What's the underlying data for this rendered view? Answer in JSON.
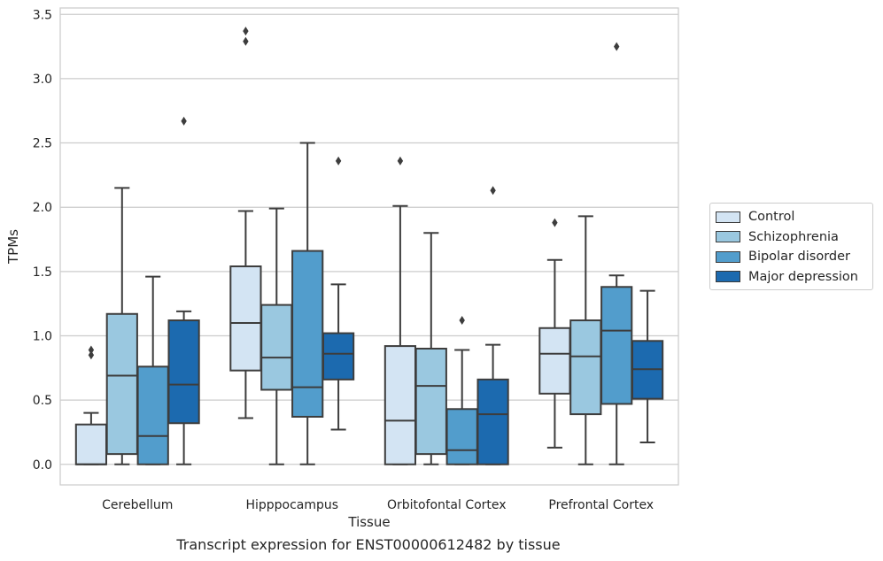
{
  "chart_data": {
    "type": "box",
    "title": "Transcript expression for ENST00000612482 by tissue",
    "xlabel": "Tissue",
    "ylabel": "TPMs",
    "ylim": [
      -0.16,
      3.55
    ],
    "yticks": [
      "0.0",
      "0.5",
      "1.0",
      "1.5",
      "2.0",
      "2.5",
      "3.0",
      "3.5"
    ],
    "grid": "horizontal",
    "legend_position": "right",
    "categories": [
      "Cerebellum",
      "Hipppocampus",
      "Orbitofontal Cortex",
      "Prefrontal Cortex"
    ],
    "series": [
      {
        "name": "Control",
        "color": "#d3e4f3",
        "boxes": [
          {
            "whisker_low": 0.0,
            "q1": 0.0,
            "median": 0.0,
            "q3": 0.31,
            "whisker_high": 0.4,
            "outliers": [
              0.85,
              0.89
            ]
          },
          {
            "whisker_low": 0.36,
            "q1": 0.73,
            "median": 1.1,
            "q3": 1.54,
            "whisker_high": 1.97,
            "outliers": [
              3.29,
              3.37
            ]
          },
          {
            "whisker_low": 0.0,
            "q1": 0.0,
            "median": 0.34,
            "q3": 0.92,
            "whisker_high": 2.01,
            "outliers": [
              2.36
            ]
          },
          {
            "whisker_low": 0.13,
            "q1": 0.55,
            "median": 0.86,
            "q3": 1.06,
            "whisker_high": 1.59,
            "outliers": [
              1.88
            ]
          }
        ]
      },
      {
        "name": "Schizophrenia",
        "color": "#9ac8e0",
        "boxes": [
          {
            "whisker_low": 0.0,
            "q1": 0.08,
            "median": 0.69,
            "q3": 1.17,
            "whisker_high": 2.15,
            "outliers": []
          },
          {
            "whisker_low": 0.0,
            "q1": 0.58,
            "median": 0.83,
            "q3": 1.24,
            "whisker_high": 1.99,
            "outliers": []
          },
          {
            "whisker_low": 0.0,
            "q1": 0.08,
            "median": 0.61,
            "q3": 0.9,
            "whisker_high": 1.8,
            "outliers": []
          },
          {
            "whisker_low": 0.0,
            "q1": 0.39,
            "median": 0.84,
            "q3": 1.12,
            "whisker_high": 1.93,
            "outliers": []
          }
        ]
      },
      {
        "name": "Bipolar disorder",
        "color": "#529dcc",
        "boxes": [
          {
            "whisker_low": 0.0,
            "q1": 0.0,
            "median": 0.22,
            "q3": 0.76,
            "whisker_high": 1.46,
            "outliers": []
          },
          {
            "whisker_low": 0.0,
            "q1": 0.37,
            "median": 0.6,
            "q3": 1.66,
            "whisker_high": 2.5,
            "outliers": []
          },
          {
            "whisker_low": 0.0,
            "q1": 0.0,
            "median": 0.11,
            "q3": 0.43,
            "whisker_high": 0.89,
            "outliers": [
              1.12
            ]
          },
          {
            "whisker_low": 0.0,
            "q1": 0.47,
            "median": 1.04,
            "q3": 1.38,
            "whisker_high": 1.47,
            "outliers": [
              3.25
            ]
          }
        ]
      },
      {
        "name": "Major depression",
        "color": "#1c6aaf",
        "boxes": [
          {
            "whisker_low": 0.0,
            "q1": 0.32,
            "median": 0.62,
            "q3": 1.12,
            "whisker_high": 1.19,
            "outliers": [
              2.67
            ]
          },
          {
            "whisker_low": 0.27,
            "q1": 0.66,
            "median": 0.86,
            "q3": 1.02,
            "whisker_high": 1.4,
            "outliers": [
              2.36
            ]
          },
          {
            "whisker_low": 0.0,
            "q1": 0.0,
            "median": 0.39,
            "q3": 0.66,
            "whisker_high": 0.93,
            "outliers": [
              2.13
            ]
          },
          {
            "whisker_low": 0.17,
            "q1": 0.51,
            "median": 0.74,
            "q3": 0.96,
            "whisker_high": 1.35,
            "outliers": []
          }
        ]
      }
    ]
  }
}
